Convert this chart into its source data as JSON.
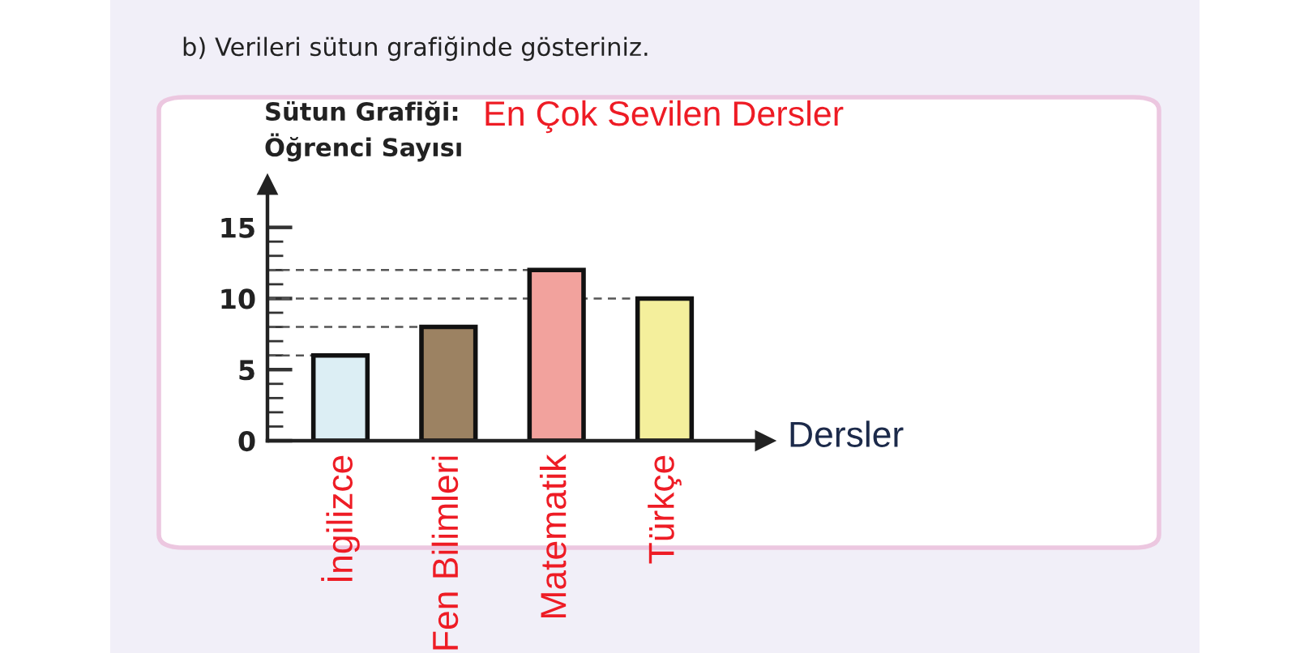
{
  "chart_data": {
    "type": "bar",
    "title": "Sütun Grafiği:",
    "subtitle": "En Çok Sevilen Dersler",
    "ylabel": "Öğrenci Sayısı",
    "xlabel": "Dersler",
    "annotations": [
      "b) Verileri sütun grafiğinde gösteriniz."
    ],
    "categories": [
      "İngilizce",
      "Fen Bilimleri",
      "Matematik",
      "Türkçe"
    ],
    "values": [
      6,
      8,
      12,
      10
    ],
    "colors": [
      "#dceef4",
      "#9c8262",
      "#f2a29d",
      "#f4ef9c"
    ],
    "ylim": [
      0,
      18
    ],
    "yticks": [
      0,
      {
        "value": 1,
        "label": null
      },
      {
        "value": 2,
        "label": null
      },
      {
        "value": 3,
        "label": null
      },
      {
        "value": 4,
        "label": null
      },
      5,
      {
        "value": 6,
        "label": null
      },
      {
        "value": 7,
        "label": null
      },
      {
        "value": 8,
        "label": null
      },
      {
        "value": 9,
        "label": null
      },
      10,
      {
        "value": 11,
        "label": null
      },
      {
        "value": 12,
        "label": null
      },
      {
        "value": 13,
        "label": null
      },
      {
        "value": 14,
        "label": null
      },
      15
    ],
    "ref_lines": [
      {
        "axis": "y",
        "value": 6,
        "color": "#555555",
        "line_style": "dashed"
      },
      {
        "axis": "y",
        "value": 8,
        "color": "#555555",
        "line_style": "dashed"
      },
      {
        "axis": "y",
        "value": 12,
        "color": "#555555",
        "line_style": "dashed"
      },
      {
        "axis": "y",
        "value": 10,
        "color": "#555555",
        "line_style": "dashed"
      }
    ]
  }
}
